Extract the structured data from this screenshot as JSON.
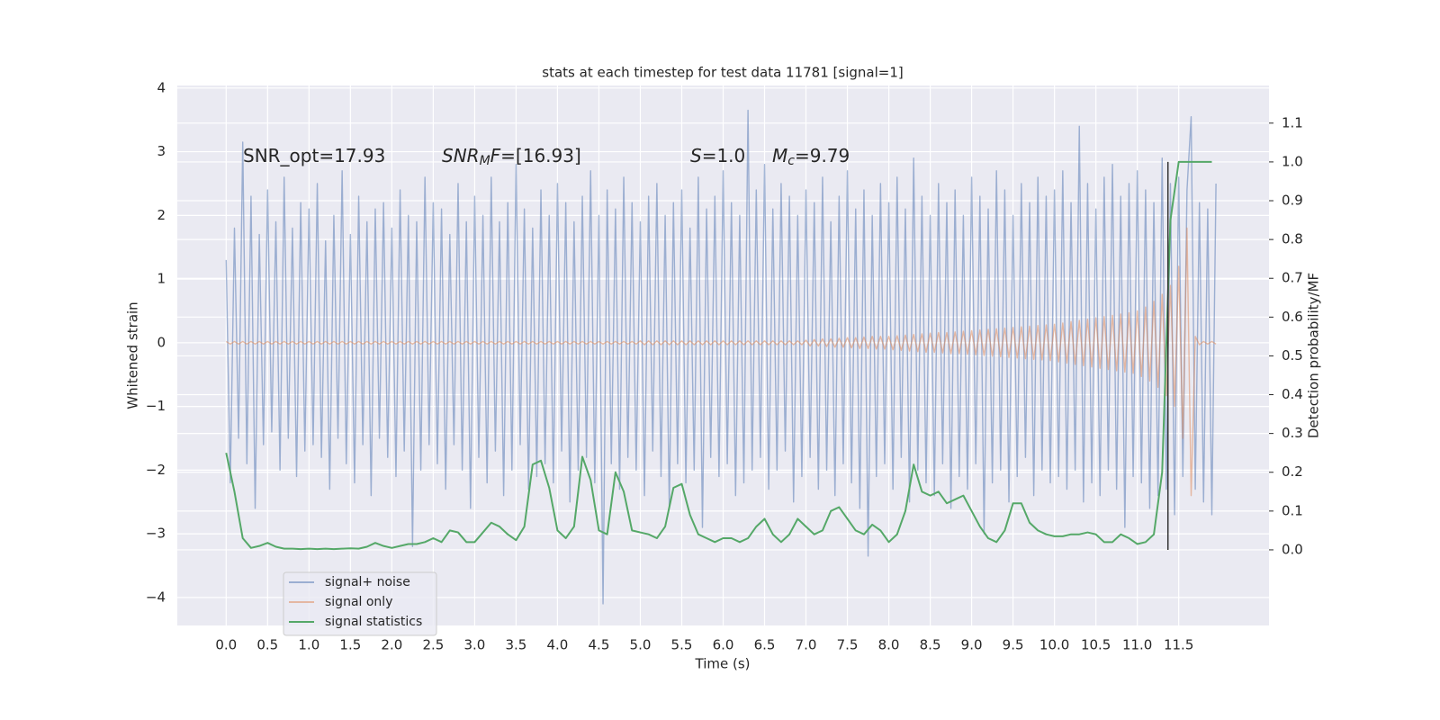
{
  "chart_data": {
    "type": "line",
    "title": "stats at each timestep for test data 11781 [signal=1]",
    "xlabel": "Time (s)",
    "ylabel": "Whitened strain",
    "y2label": "Detection probability/MF",
    "annotations": [
      [
        "SNR_opt=17.93"
      ],
      [
        "SNR",
        "M",
        "F",
        "=[16.93]"
      ],
      [
        "S",
        "=1.0"
      ],
      [
        "M",
        "c",
        "=9.79"
      ]
    ],
    "grid": true,
    "legend": "lower left",
    "xlim": [
      -0.59,
      12.59
    ],
    "ylim": [
      -4.44,
      4.04
    ],
    "y2lim": [
      -0.195,
      1.197
    ],
    "xticks": [
      {
        "value": 0,
        "label": "0.0"
      },
      0.5,
      {
        "value": 1,
        "label": "1.0"
      },
      1.5,
      {
        "value": 2,
        "label": "2.0"
      },
      2.5,
      {
        "value": 3,
        "label": "3.0"
      },
      3.5,
      {
        "value": 4,
        "label": "4.0"
      },
      4.5,
      {
        "value": 5,
        "label": "5.0"
      },
      5.5,
      {
        "value": 6,
        "label": "6.0"
      },
      6.5,
      {
        "value": 7,
        "label": "7.0"
      },
      7.5,
      {
        "value": 8,
        "label": "8.0"
      },
      8.5,
      {
        "value": 9,
        "label": "9.0"
      },
      9.5,
      {
        "value": 10,
        "label": "10.0"
      },
      10.5,
      {
        "value": 11,
        "label": "11.0"
      },
      11.5
    ],
    "yticks": [
      {
        "value": -4,
        "label": "−4"
      },
      {
        "value": -3,
        "label": "−3"
      },
      {
        "value": -2,
        "label": "−2"
      },
      {
        "value": -1,
        "label": "−1"
      },
      0,
      1,
      2,
      3,
      4
    ],
    "y2ticks": [
      {
        "value": 0,
        "label": "0.0"
      },
      0.1,
      0.2,
      0.3,
      0.4,
      0.5,
      0.6,
      0.7,
      0.8,
      0.9,
      {
        "value": 1,
        "label": "1.0"
      },
      1.1
    ],
    "vline": {
      "x": 11.37,
      "y2range": [
        0,
        1
      ],
      "color": "#333333"
    },
    "x": [
      0,
      0.05,
      0.1,
      0.15,
      0.2,
      0.25,
      0.3,
      0.35,
      0.4,
      0.45,
      0.5,
      0.55,
      0.6,
      0.65,
      0.7,
      0.75,
      0.8,
      0.85,
      0.9,
      0.95,
      1,
      1.05,
      1.1,
      1.15,
      1.2,
      1.25,
      1.3,
      1.35,
      1.4,
      1.45,
      1.5,
      1.55,
      1.6,
      1.65,
      1.7,
      1.75,
      1.8,
      1.85,
      1.9,
      1.95,
      2,
      2.05,
      2.1,
      2.15,
      2.2,
      2.25,
      2.3,
      2.35,
      2.4,
      2.45,
      2.5,
      2.55,
      2.6,
      2.65,
      2.7,
      2.75,
      2.8,
      2.85,
      2.9,
      2.95,
      3,
      3.05,
      3.1,
      3.15,
      3.2,
      3.25,
      3.3,
      3.35,
      3.4,
      3.45,
      3.5,
      3.55,
      3.6,
      3.65,
      3.7,
      3.75,
      3.8,
      3.85,
      3.9,
      3.95,
      4,
      4.05,
      4.1,
      4.15,
      4.2,
      4.25,
      4.3,
      4.35,
      4.4,
      4.45,
      4.5,
      4.55,
      4.6,
      4.65,
      4.7,
      4.75,
      4.8,
      4.85,
      4.9,
      4.95,
      5,
      5.05,
      5.1,
      5.15,
      5.2,
      5.25,
      5.3,
      5.35,
      5.4,
      5.45,
      5.5,
      5.55,
      5.6,
      5.65,
      5.7,
      5.75,
      5.8,
      5.85,
      5.9,
      5.95,
      6,
      6.05,
      6.1,
      6.15,
      6.2,
      6.25,
      6.3,
      6.35,
      6.4,
      6.45,
      6.5,
      6.55,
      6.6,
      6.65,
      6.7,
      6.75,
      6.8,
      6.85,
      6.9,
      6.95,
      7,
      7.05,
      7.1,
      7.15,
      7.2,
      7.25,
      7.3,
      7.35,
      7.4,
      7.45,
      7.5,
      7.55,
      7.6,
      7.65,
      7.7,
      7.75,
      7.8,
      7.85,
      7.9,
      7.95,
      8,
      8.05,
      8.1,
      8.15,
      8.2,
      8.25,
      8.3,
      8.35,
      8.4,
      8.45,
      8.5,
      8.55,
      8.6,
      8.65,
      8.7,
      8.75,
      8.8,
      8.85,
      8.9,
      8.95,
      9,
      9.05,
      9.1,
      9.15,
      9.2,
      9.25,
      9.3,
      9.35,
      9.4,
      9.45,
      9.5,
      9.55,
      9.6,
      9.65,
      9.7,
      9.75,
      9.8,
      9.85,
      9.9,
      9.95,
      10,
      10.05,
      10.1,
      10.15,
      10.2,
      10.25,
      10.3,
      10.35,
      10.4,
      10.45,
      10.5,
      10.55,
      10.6,
      10.65,
      10.7,
      10.75,
      10.8,
      10.85,
      10.9,
      10.95,
      11,
      11.05,
      11.1,
      11.15,
      11.2,
      11.25,
      11.3,
      11.35,
      11.4,
      11.45,
      11.5,
      11.55,
      11.6,
      11.65,
      11.7,
      11.75,
      11.8,
      11.85,
      11.9,
      11.95
    ],
    "series": [
      {
        "name": "signal+ noise",
        "color": "#4c72b0",
        "opacity": 0.5,
        "values": [
          1.3,
          -2.2,
          1.8,
          -1.5,
          3.15,
          -1.9,
          2.3,
          -2.6,
          1.7,
          -1.6,
          2.4,
          -1.4,
          1.9,
          -2.0,
          2.6,
          -1.5,
          1.8,
          -2.1,
          2.2,
          -1.7,
          2.1,
          -1.6,
          2.5,
          -1.8,
          1.6,
          -2.3,
          2.0,
          -1.5,
          2.7,
          -1.9,
          1.7,
          -2.2,
          2.3,
          -1.6,
          1.9,
          -2.4,
          2.1,
          -1.5,
          2.2,
          -1.8,
          1.8,
          -2.1,
          2.4,
          -1.7,
          2.0,
          -3.2,
          1.9,
          -2.0,
          2.6,
          -1.6,
          2.2,
          -1.9,
          2.1,
          -2.3,
          1.7,
          -1.6,
          2.5,
          -2.0,
          1.9,
          -2.6,
          2.3,
          -1.8,
          2.0,
          -2.2,
          2.6,
          -1.7,
          1.9,
          -2.4,
          2.2,
          -2.0,
          2.8,
          -1.6,
          2.1,
          -2.3,
          1.8,
          -2.1,
          2.4,
          -1.9,
          2.0,
          -2.2,
          2.5,
          -1.7,
          2.2,
          -2.5,
          1.9,
          -2.0,
          2.3,
          -1.8,
          2.7,
          -2.2,
          2.0,
          -4.1,
          2.4,
          -1.9,
          2.1,
          -2.3,
          2.6,
          -1.8,
          2.2,
          -2.0,
          1.9,
          -2.4,
          2.3,
          -1.7,
          2.5,
          -2.1,
          2.0,
          -2.6,
          2.2,
          -1.9,
          2.4,
          -2.2,
          1.8,
          -2.0,
          2.6,
          -2.9,
          2.1,
          -1.8,
          2.3,
          -2.1,
          2.7,
          -1.9,
          2.2,
          -2.4,
          2.0,
          -2.2,
          3.65,
          -2.0,
          2.4,
          -1.8,
          2.8,
          -2.3,
          2.1,
          -2.0,
          2.5,
          -1.7,
          2.3,
          -2.5,
          2.0,
          -2.1,
          2.4,
          -1.8,
          2.2,
          -2.3,
          2.6,
          -2.0,
          1.9,
          -2.4,
          2.3,
          -1.9,
          2.7,
          -2.2,
          2.1,
          -2.6,
          2.4,
          -3.35,
          2.0,
          -2.1,
          2.5,
          -1.9,
          2.2,
          -2.3,
          2.6,
          -1.8,
          2.1,
          -2.5,
          2.9,
          -2.0,
          2.3,
          -2.2,
          2.0,
          -2.4,
          2.5,
          -1.9,
          2.2,
          -2.6,
          2.4,
          -2.1,
          2.0,
          -2.3,
          2.6,
          -1.9,
          2.3,
          -3.0,
          2.1,
          -2.2,
          2.7,
          -2.0,
          2.4,
          -2.5,
          2.0,
          -2.1,
          2.5,
          -1.8,
          2.2,
          -2.4,
          2.6,
          -2.0,
          2.3,
          -2.2,
          2.4,
          -2.1,
          2.7,
          -2.3,
          2.2,
          -2.0,
          3.4,
          -2.5,
          2.5,
          -2.2,
          2.1,
          -2.4,
          2.6,
          -2.0,
          2.8,
          -2.3,
          2.3,
          -2.9,
          2.5,
          -2.1,
          2.7,
          -2.2,
          2.4,
          -2.6,
          2.2,
          -2.4,
          2.9,
          -2.3,
          2.5,
          -2.7,
          2.6,
          -2.1,
          2.4,
          3.55,
          -2.3,
          2.2,
          -2.5,
          2.1,
          -2.7,
          2.5
        ]
      },
      {
        "name": "signal only",
        "color": "#dd8452",
        "opacity": 0.5,
        "values": [
          0.02,
          -0.02,
          0.02,
          -0.02,
          0.02,
          -0.02,
          0.02,
          -0.02,
          0.02,
          -0.02,
          0.02,
          -0.02,
          0.02,
          -0.02,
          0.02,
          -0.02,
          0.02,
          -0.02,
          0.02,
          -0.02,
          0.02,
          -0.02,
          0.02,
          -0.02,
          0.02,
          -0.02,
          0.02,
          -0.02,
          0.02,
          -0.02,
          0.02,
          -0.02,
          0.02,
          -0.02,
          0.02,
          -0.02,
          0.02,
          -0.02,
          0.02,
          -0.02,
          0.02,
          -0.02,
          0.02,
          -0.02,
          0.02,
          -0.02,
          0.02,
          -0.02,
          0.02,
          -0.02,
          0.02,
          -0.02,
          0.02,
          -0.02,
          0.02,
          -0.02,
          0.02,
          -0.02,
          0.02,
          -0.02,
          0.02,
          -0.02,
          0.02,
          -0.02,
          0.02,
          -0.02,
          0.02,
          -0.02,
          0.02,
          -0.02,
          0.02,
          -0.02,
          0.02,
          -0.02,
          0.02,
          -0.02,
          0.02,
          -0.02,
          0.02,
          -0.02,
          0.02,
          -0.02,
          0.02,
          -0.02,
          0.02,
          -0.02,
          0.02,
          -0.02,
          0.02,
          -0.02,
          0.02,
          -0.02,
          0.02,
          -0.02,
          0.02,
          -0.02,
          0.02,
          -0.02,
          0.02,
          -0.02,
          0.03,
          -0.03,
          0.03,
          -0.03,
          0.03,
          -0.03,
          0.03,
          -0.03,
          0.03,
          -0.03,
          0.03,
          -0.03,
          0.03,
          -0.03,
          0.03,
          -0.03,
          0.03,
          -0.03,
          0.03,
          -0.03,
          0.03,
          -0.03,
          0.03,
          -0.03,
          0.03,
          -0.03,
          0.03,
          -0.03,
          0.03,
          -0.03,
          0.03,
          -0.03,
          0.03,
          -0.03,
          0.03,
          -0.03,
          0.03,
          -0.03,
          0.03,
          -0.03,
          0.04,
          -0.05,
          0.05,
          -0.05,
          0.06,
          -0.06,
          0.06,
          -0.07,
          0.07,
          -0.07,
          0.08,
          -0.08,
          0.08,
          -0.09,
          0.09,
          -0.09,
          0.1,
          -0.1,
          0.1,
          -0.1,
          0.1,
          -0.11,
          0.11,
          -0.12,
          0.12,
          -0.13,
          0.13,
          -0.14,
          0.14,
          -0.15,
          0.15,
          -0.15,
          0.16,
          -0.16,
          0.16,
          -0.17,
          0.17,
          -0.17,
          0.18,
          -0.18,
          0.19,
          -0.19,
          0.2,
          -0.2,
          0.21,
          -0.21,
          0.22,
          -0.22,
          0.23,
          -0.23,
          0.24,
          -0.24,
          0.25,
          -0.25,
          0.26,
          -0.26,
          0.27,
          -0.27,
          0.28,
          -0.28,
          0.29,
          -0.3,
          0.31,
          -0.32,
          0.33,
          -0.34,
          0.35,
          -0.36,
          0.37,
          -0.38,
          0.39,
          -0.4,
          0.41,
          -0.42,
          0.43,
          -0.44,
          0.45,
          -0.46,
          0.47,
          -0.48,
          0.5,
          -0.53,
          0.56,
          -0.6,
          0.65,
          -0.7,
          0.76,
          -0.83,
          0.9,
          -1.0,
          1.2,
          -1.5,
          1.8,
          -2.4,
          0.1,
          -0.03,
          0.02,
          -0.02,
          0.02,
          -0.02
        ]
      },
      {
        "name": "signal statistics",
        "color": "#55a868",
        "axis": "y2",
        "x": [
          0,
          0.1,
          0.2,
          0.3,
          0.4,
          0.5,
          0.6,
          0.7,
          0.8,
          0.9,
          1,
          1.1,
          1.2,
          1.3,
          1.4,
          1.5,
          1.6,
          1.7,
          1.8,
          1.9,
          2,
          2.1,
          2.2,
          2.3,
          2.4,
          2.5,
          2.6,
          2.7,
          2.8,
          2.9,
          3,
          3.1,
          3.2,
          3.3,
          3.4,
          3.5,
          3.6,
          3.7,
          3.8,
          3.9,
          4,
          4.1,
          4.2,
          4.3,
          4.4,
          4.5,
          4.6,
          4.7,
          4.8,
          4.9,
          5,
          5.1,
          5.2,
          5.3,
          5.4,
          5.5,
          5.6,
          5.7,
          5.8,
          5.9,
          6,
          6.1,
          6.2,
          6.3,
          6.4,
          6.5,
          6.6,
          6.7,
          6.8,
          6.9,
          7,
          7.1,
          7.2,
          7.3,
          7.4,
          7.5,
          7.6,
          7.7,
          7.8,
          7.9,
          8,
          8.1,
          8.2,
          8.3,
          8.4,
          8.5,
          8.6,
          8.7,
          8.8,
          8.9,
          9,
          9.1,
          9.2,
          9.3,
          9.4,
          9.5,
          9.6,
          9.7,
          9.8,
          9.9,
          10,
          10.1,
          10.2,
          10.3,
          10.4,
          10.5,
          10.6,
          10.7,
          10.8,
          10.9,
          11,
          11.1,
          11.2,
          11.3,
          11.4,
          11.5,
          11.6,
          11.7,
          11.8,
          11.9
        ],
        "values": [
          0.25,
          0.15,
          0.03,
          0.005,
          0.01,
          0.018,
          0.008,
          0.003,
          0.003,
          0.002,
          0.003,
          0.002,
          0.003,
          0.002,
          0.003,
          0.004,
          0.003,
          0.008,
          0.018,
          0.01,
          0.005,
          0.01,
          0.015,
          0.015,
          0.02,
          0.03,
          0.02,
          0.05,
          0.045,
          0.02,
          0.02,
          0.045,
          0.07,
          0.06,
          0.04,
          0.025,
          0.06,
          0.22,
          0.23,
          0.16,
          0.05,
          0.03,
          0.06,
          0.24,
          0.18,
          0.05,
          0.04,
          0.2,
          0.15,
          0.05,
          0.045,
          0.04,
          0.03,
          0.06,
          0.16,
          0.17,
          0.09,
          0.04,
          0.03,
          0.02,
          0.03,
          0.03,
          0.02,
          0.03,
          0.06,
          0.08,
          0.04,
          0.02,
          0.04,
          0.08,
          0.06,
          0.04,
          0.05,
          0.1,
          0.11,
          0.08,
          0.05,
          0.04,
          0.065,
          0.05,
          0.02,
          0.04,
          0.1,
          0.22,
          0.15,
          0.14,
          0.15,
          0.12,
          0.13,
          0.14,
          0.1,
          0.06,
          0.03,
          0.02,
          0.05,
          0.12,
          0.12,
          0.07,
          0.05,
          0.04,
          0.035,
          0.035,
          0.04,
          0.04,
          0.045,
          0.04,
          0.02,
          0.02,
          0.04,
          0.03,
          0.015,
          0.02,
          0.04,
          0.2,
          0.85,
          1.0,
          1.0,
          1.0,
          1.0,
          1.0
        ]
      }
    ]
  }
}
